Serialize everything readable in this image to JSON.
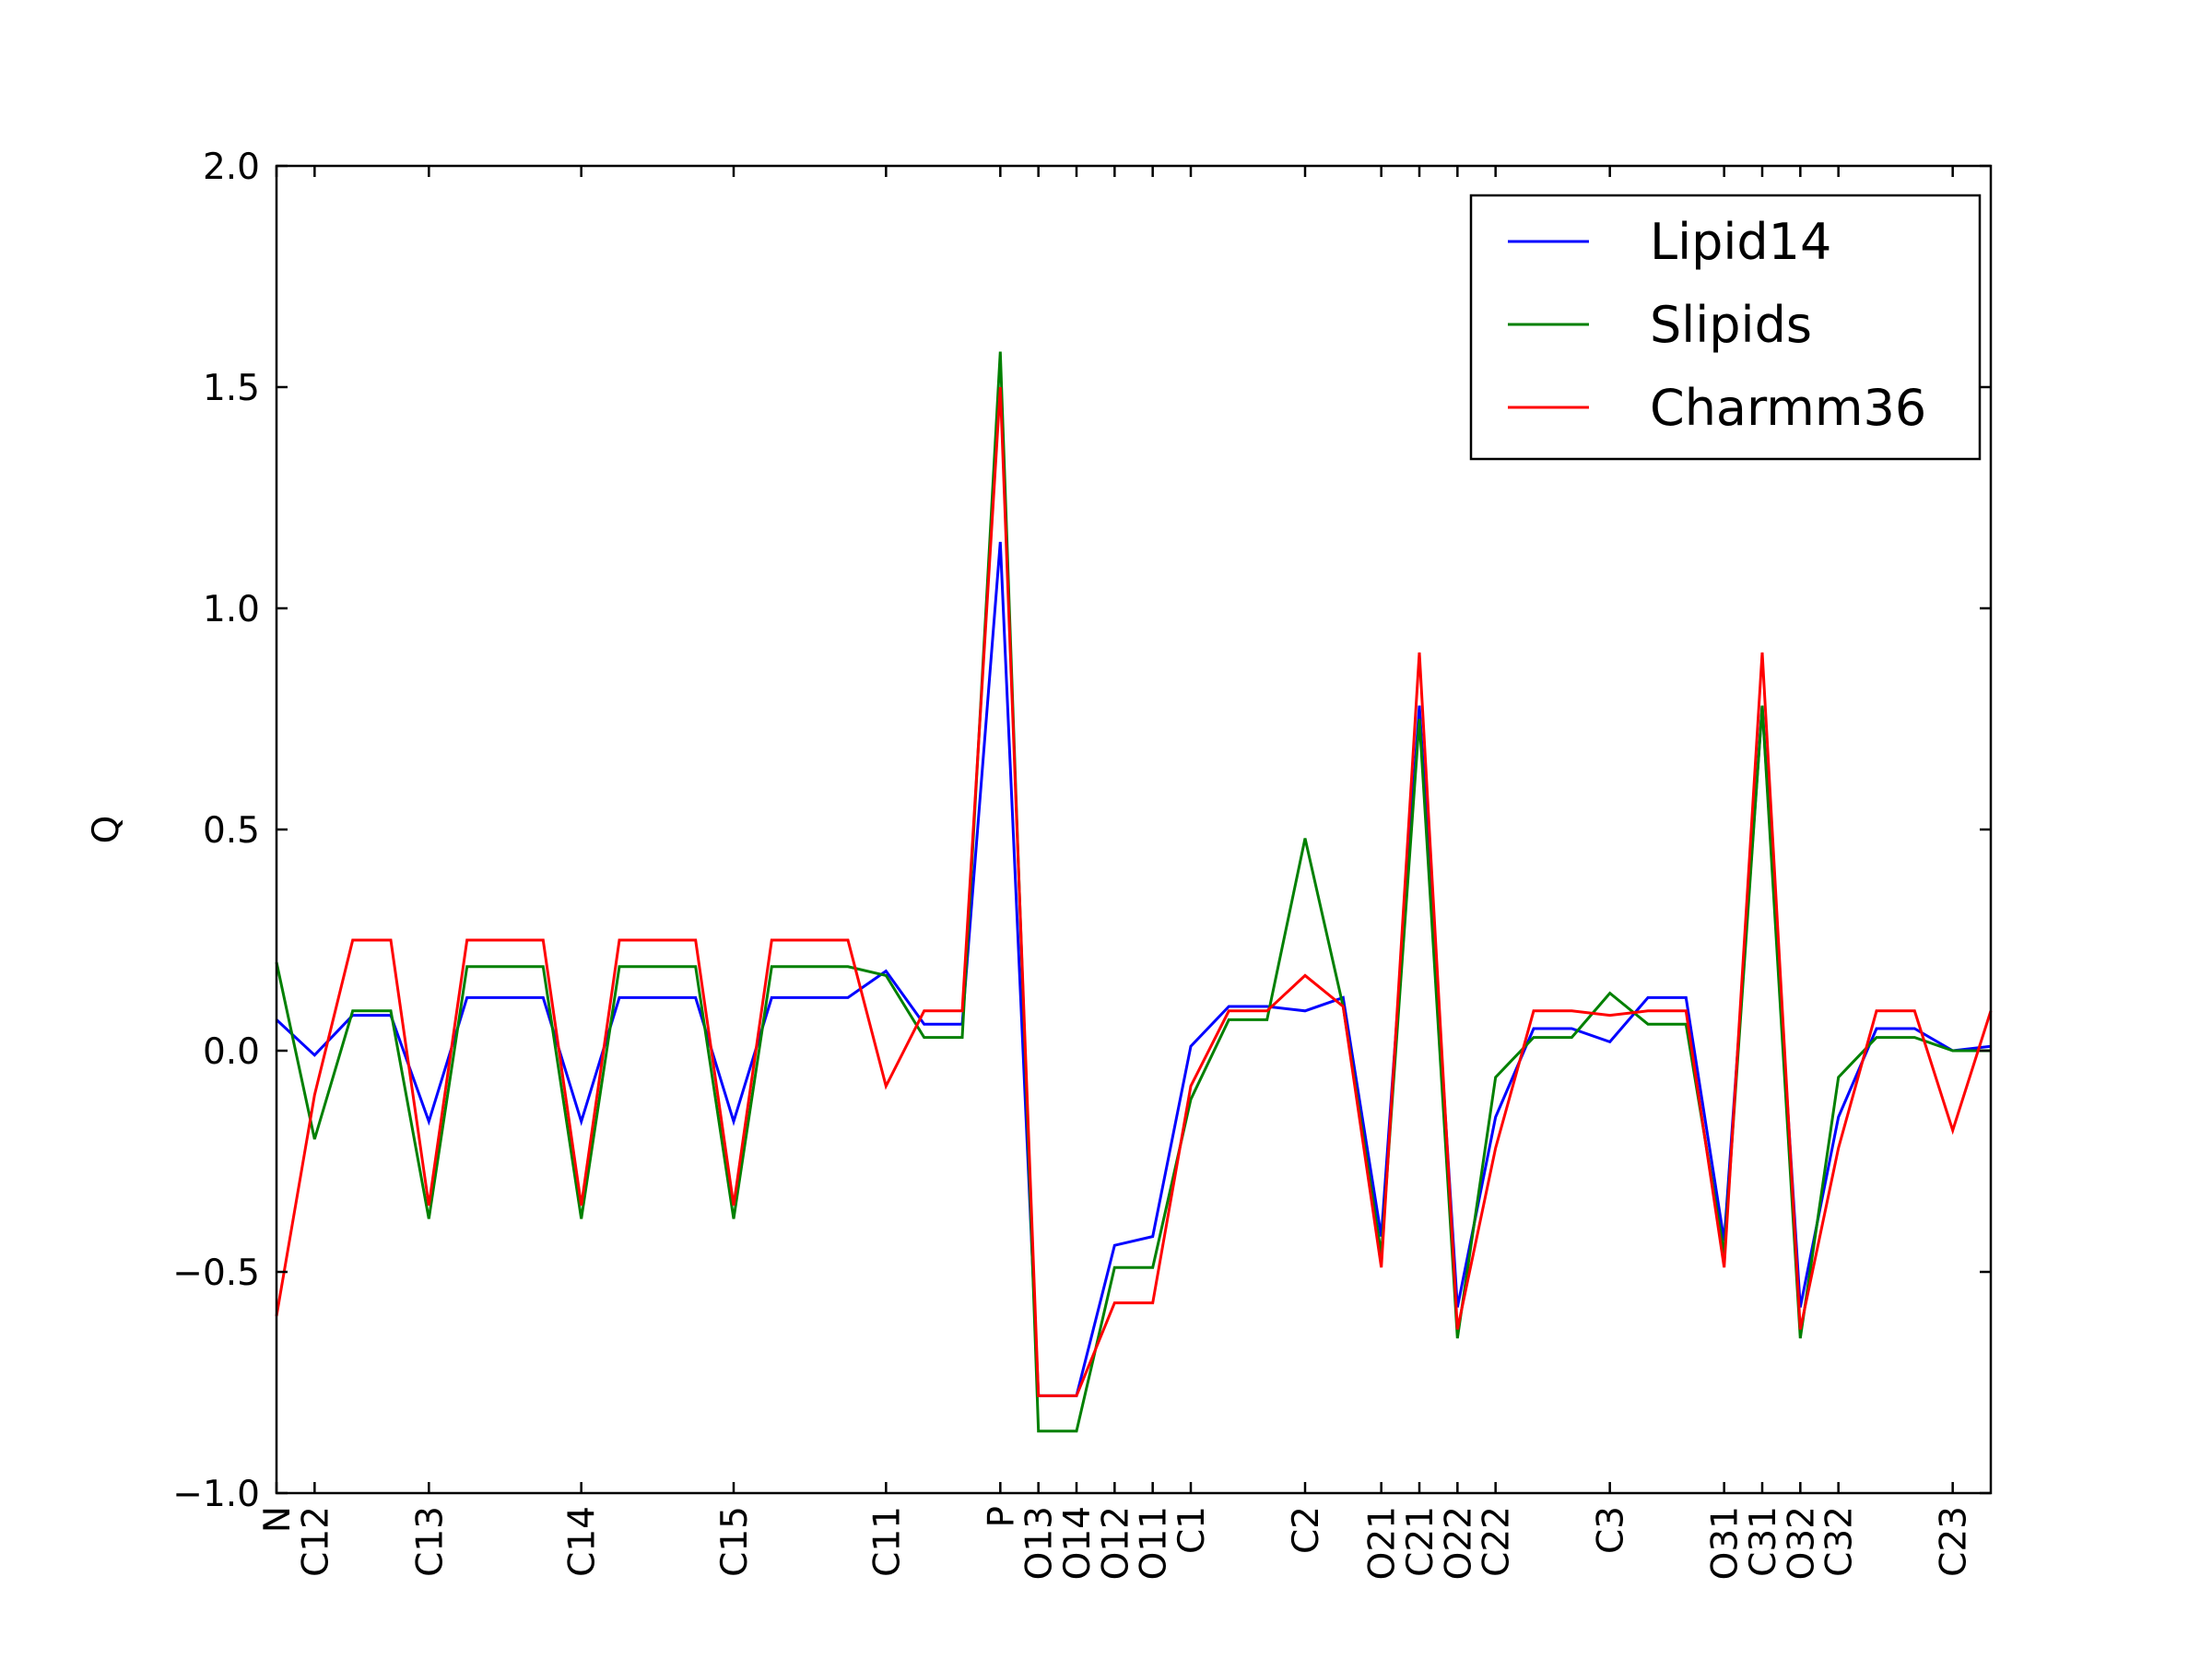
{
  "chart_data": {
    "type": "line",
    "title": "",
    "xlabel": "",
    "ylabel": "Q",
    "ylim": [
      -1.0,
      2.0
    ],
    "yticks": [
      "−1.0",
      "−0.5",
      "0.0",
      "0.5",
      "1.0",
      "1.5",
      "2.0"
    ],
    "ytick_values": [
      -1.0,
      -0.5,
      0.0,
      0.5,
      1.0,
      1.5,
      2.0
    ],
    "grid": false,
    "legend_position": "top-right",
    "x_tick_labels": [
      {
        "label": "N",
        "index": 0
      },
      {
        "label": "C12",
        "index": 1
      },
      {
        "label": "C13",
        "index": 4
      },
      {
        "label": "C14",
        "index": 8
      },
      {
        "label": "C15",
        "index": 12
      },
      {
        "label": "C11",
        "index": 16
      },
      {
        "label": "P",
        "index": 19
      },
      {
        "label": "O13",
        "index": 20
      },
      {
        "label": "O14",
        "index": 21
      },
      {
        "label": "O12",
        "index": 22
      },
      {
        "label": "O11",
        "index": 23
      },
      {
        "label": "C1",
        "index": 24
      },
      {
        "label": "C2",
        "index": 27
      },
      {
        "label": "O21",
        "index": 29
      },
      {
        "label": "C21",
        "index": 30
      },
      {
        "label": "O22",
        "index": 31
      },
      {
        "label": "C22",
        "index": 32
      },
      {
        "label": "C3",
        "index": 35
      },
      {
        "label": "O31",
        "index": 38
      },
      {
        "label": "C31",
        "index": 39
      },
      {
        "label": "O32",
        "index": 40
      },
      {
        "label": "C32",
        "index": 41
      },
      {
        "label": "C23",
        "index": 44
      }
    ],
    "x_count": 46,
    "series": [
      {
        "name": "Lipid14",
        "color": "#0000ff",
        "values": [
          0.07,
          -0.01,
          0.08,
          0.08,
          -0.16,
          0.12,
          0.12,
          0.12,
          -0.16,
          0.12,
          0.12,
          0.12,
          -0.16,
          0.12,
          0.12,
          0.12,
          0.18,
          0.06,
          0.06,
          1.15,
          -0.78,
          -0.78,
          -0.44,
          -0.42,
          0.01,
          0.1,
          0.1,
          0.09,
          0.12,
          -0.42,
          0.78,
          -0.58,
          -0.15,
          0.05,
          0.05,
          0.02,
          0.12,
          0.12,
          -0.43,
          0.78,
          -0.58,
          -0.15,
          0.05,
          0.05,
          0.0,
          0.01
        ]
      },
      {
        "name": "Slipids",
        "color": "#008000",
        "values": [
          0.2,
          -0.2,
          0.09,
          0.09,
          -0.38,
          0.19,
          0.19,
          0.19,
          -0.38,
          0.19,
          0.19,
          0.19,
          -0.38,
          0.19,
          0.19,
          0.19,
          0.17,
          0.03,
          0.03,
          1.58,
          -0.86,
          -0.86,
          -0.49,
          -0.49,
          -0.11,
          0.07,
          0.07,
          0.48,
          0.1,
          -0.46,
          0.75,
          -0.65,
          -0.06,
          0.03,
          0.03,
          0.13,
          0.06,
          0.06,
          -0.46,
          0.78,
          -0.65,
          -0.06,
          0.03,
          0.03,
          0.0,
          0.0
        ]
      },
      {
        "name": "Charmm36",
        "color": "#ff0000",
        "values": [
          -0.6,
          -0.1,
          0.25,
          0.25,
          -0.35,
          0.25,
          0.25,
          0.25,
          -0.35,
          0.25,
          0.25,
          0.25,
          -0.35,
          0.25,
          0.25,
          0.25,
          -0.08,
          0.09,
          0.09,
          1.5,
          -0.78,
          -0.78,
          -0.57,
          -0.57,
          -0.08,
          0.09,
          0.09,
          0.17,
          0.1,
          -0.49,
          0.9,
          -0.63,
          -0.22,
          0.09,
          0.09,
          0.08,
          0.09,
          0.09,
          -0.49,
          0.9,
          -0.63,
          -0.22,
          0.09,
          0.09,
          -0.18,
          0.09
        ]
      }
    ]
  }
}
